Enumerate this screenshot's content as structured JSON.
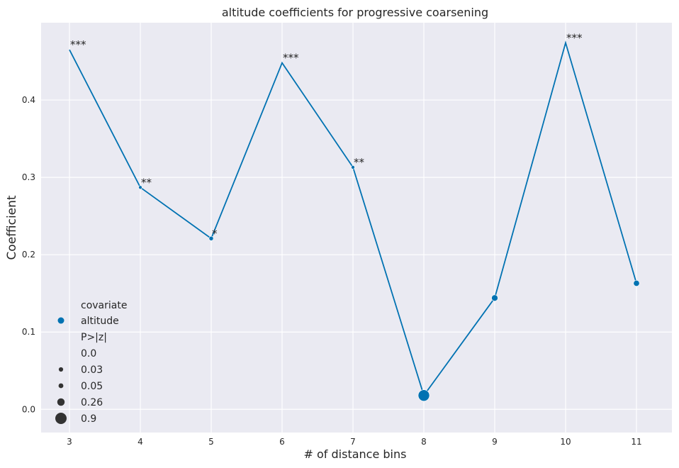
{
  "chart_data": {
    "type": "line",
    "title": "altitude coefficients for progressive coarsening",
    "xlabel": "# of distance bins",
    "ylabel": "Coefficient",
    "xlim": [
      2.6,
      11.5
    ],
    "ylim": [
      -0.03,
      0.5
    ],
    "x_ticks": [
      3,
      4,
      5,
      6,
      7,
      8,
      9,
      10,
      11
    ],
    "y_ticks": [
      0.0,
      0.1,
      0.2,
      0.3,
      0.4
    ],
    "y_tick_labels": [
      "0.0",
      "0.1",
      "0.2",
      "0.3",
      "0.4"
    ],
    "grid": true,
    "series": [
      {
        "name": "altitude",
        "color": "#0072B2",
        "x": [
          3,
          4,
          5,
          6,
          7,
          8,
          9,
          10,
          11
        ],
        "y": [
          0.465,
          0.287,
          0.221,
          0.448,
          0.313,
          0.018,
          0.144,
          0.474,
          0.163
        ],
        "p_values": [
          0.0,
          0.005,
          0.03,
          0.0,
          0.005,
          0.9,
          0.15,
          0.0,
          0.12
        ],
        "significance": [
          "***",
          "**",
          "*",
          "***",
          "**",
          "",
          "",
          "***",
          ""
        ]
      }
    ],
    "legend": {
      "placement": "lower-left",
      "hue_title": "covariate",
      "hue_entries": [
        {
          "label": "altitude",
          "color": "#0072B2"
        }
      ],
      "size_title": "P>|z|",
      "size_entries": [
        {
          "label": "0.0",
          "p": 0.0
        },
        {
          "label": "0.03",
          "p": 0.03
        },
        {
          "label": "0.05",
          "p": 0.05
        },
        {
          "label": "0.26",
          "p": 0.26
        },
        {
          "label": "0.9",
          "p": 0.9
        }
      ]
    }
  }
}
